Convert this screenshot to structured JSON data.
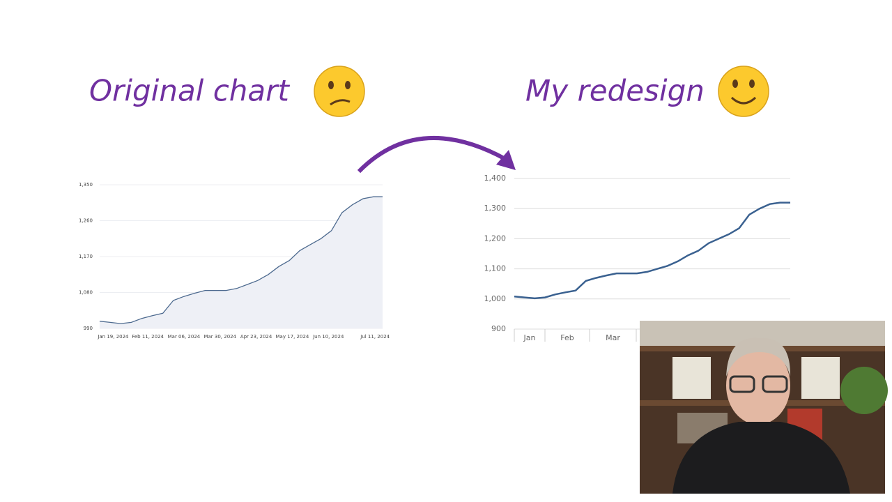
{
  "chart_data": [
    {
      "type": "area",
      "title": "Original chart",
      "color": "#4d6a8f",
      "fill": "#eef0f6",
      "x": [
        "2024-01-10",
        "2024-01-17",
        "2024-01-24",
        "2024-01-31",
        "2024-02-07",
        "2024-02-14",
        "2024-02-21",
        "2024-02-28",
        "2024-03-06",
        "2024-03-13",
        "2024-03-20",
        "2024-03-27",
        "2024-04-03",
        "2024-04-10",
        "2024-04-17",
        "2024-04-24",
        "2024-05-01",
        "2024-05-08",
        "2024-05-15",
        "2024-05-22",
        "2024-05-29",
        "2024-06-05",
        "2024-06-12",
        "2024-06-19",
        "2024-06-26",
        "2024-07-03",
        "2024-07-10",
        "2024-07-16"
      ],
      "values": [
        1008,
        1005,
        1002,
        1005,
        1015,
        1022,
        1028,
        1060,
        1070,
        1078,
        1085,
        1085,
        1085,
        1090,
        1100,
        1110,
        1125,
        1145,
        1160,
        1185,
        1200,
        1215,
        1235,
        1280,
        1300,
        1315,
        1320,
        1320
      ],
      "xlim": [
        "2024-01-10",
        "2024-07-16"
      ],
      "xticks": [
        {
          "value": "2024-01-19",
          "label": "Jan 19, 2024"
        },
        {
          "value": "2024-02-11",
          "label": "Feb 11, 2024"
        },
        {
          "value": "2024-03-06",
          "label": "Mar 06, 2024"
        },
        {
          "value": "2024-03-30",
          "label": "Mar 30, 2024"
        },
        {
          "value": "2024-04-23",
          "label": "Apr 23, 2024"
        },
        {
          "value": "2024-05-17",
          "label": "May 17, 2024"
        },
        {
          "value": "2024-06-10",
          "label": "Jun 10, 2024"
        },
        {
          "value": "2024-07-11",
          "label": "Jul 11, 2024"
        }
      ],
      "ylim": [
        990,
        1350
      ],
      "yticks": [
        990,
        {
          "value": 1080,
          "label": "1,080"
        },
        {
          "value": 1170,
          "label": "1,170"
        },
        {
          "value": 1260,
          "label": "1,260"
        },
        {
          "value": 1350,
          "label": "1,350"
        }
      ],
      "grid": true
    },
    {
      "type": "line",
      "title": "My redesign",
      "color": "#3a6190",
      "values": [
        1008,
        1005,
        1002,
        1005,
        1015,
        1022,
        1028,
        1060,
        1070,
        1078,
        1085,
        1085,
        1085,
        1090,
        1100,
        1110,
        1125,
        1145,
        1160,
        1185,
        1200,
        1215,
        1235,
        1280,
        1300,
        1315,
        1320,
        1320
      ],
      "xticks": [
        "Jan",
        "Feb",
        "Mar"
      ],
      "ylim": [
        900,
        1400
      ],
      "yticks": [
        900,
        {
          "value": 1000,
          "label": "1,000"
        },
        {
          "value": 1100,
          "label": "1,100"
        },
        {
          "value": 1200,
          "label": "1,200"
        },
        {
          "value": 1300,
          "label": "1,300"
        },
        {
          "value": 1400,
          "label": "1,400"
        }
      ],
      "grid": true
    }
  ]
}
